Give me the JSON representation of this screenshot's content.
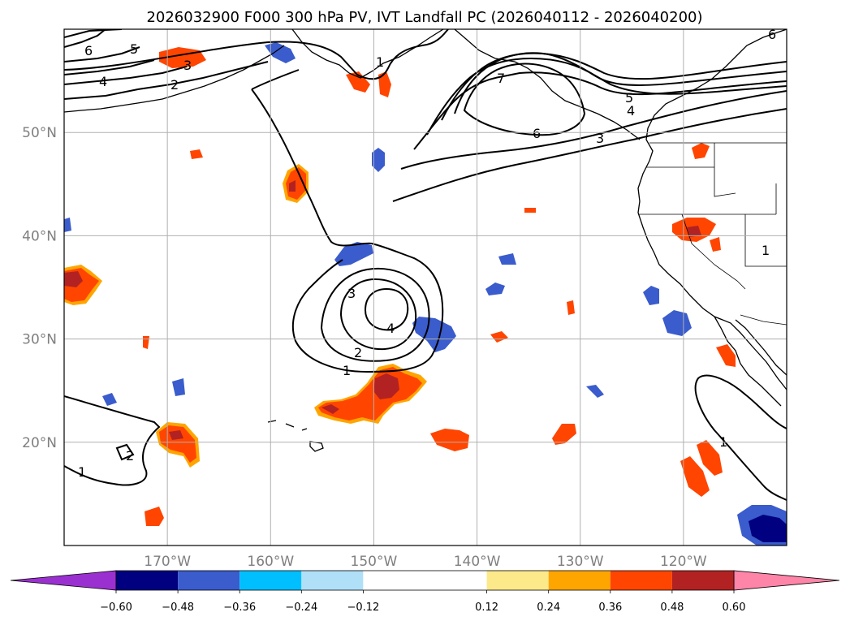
{
  "title": "2026032900 F000 300 hPa PV, IVT Landfall PC (2026040112 - 2026040200)",
  "map": {
    "projection": "PlateCarree",
    "lon_range": [
      -180,
      -110
    ],
    "lat_range": [
      10,
      60
    ],
    "lon_ticks": [
      {
        "value": -170,
        "label": "170°W"
      },
      {
        "value": -160,
        "label": "160°W"
      },
      {
        "value": -150,
        "label": "150°W"
      },
      {
        "value": -140,
        "label": "140°W"
      },
      {
        "value": -130,
        "label": "130°W"
      },
      {
        "value": -120,
        "label": "120°W"
      }
    ],
    "lat_ticks": [
      {
        "value": 50,
        "label": "50°N"
      },
      {
        "value": 40,
        "label": "40°N"
      },
      {
        "value": 30,
        "label": "30°N"
      },
      {
        "value": 20,
        "label": "20°N"
      }
    ],
    "contour_field": "300 hPa PV",
    "shaded_field": "IVT Landfall PC",
    "contour_levels_labeled": [
      "1",
      "2",
      "3",
      "4",
      "5",
      "6",
      "7"
    ],
    "shaded_features": [
      {
        "lat": 25.0,
        "lon": -149.0,
        "value": 0.5
      },
      {
        "lat": 22.5,
        "lon": -153.0,
        "value": 0.45
      },
      {
        "lat": 20.2,
        "lon": -170.0,
        "value": 0.45
      },
      {
        "lat": 35.5,
        "lon": -179.0,
        "value": 0.5
      },
      {
        "lat": 44.0,
        "lon": -158.5,
        "value": 0.45
      },
      {
        "lat": 41.0,
        "lon": -120.0,
        "value": 0.45
      },
      {
        "lat": 30.5,
        "lon": -145.5,
        "value": -0.4
      },
      {
        "lat": 38.5,
        "lon": -152.5,
        "value": -0.4
      },
      {
        "lat": 12.5,
        "lon": -112.5,
        "value": -0.55
      },
      {
        "lat": 31.5,
        "lon": -121.0,
        "value": -0.4
      }
    ]
  },
  "colorbar": {
    "colors": [
      "#9b30d0",
      "#000080",
      "#3a5ccc",
      "#00bfff",
      "#b0e0f8",
      "#ffffff",
      "#fce98a",
      "#ffa500",
      "#ff4500",
      "#b22222",
      "#ff85a8"
    ],
    "bounds": [
      -0.6,
      -0.48,
      -0.36,
      -0.24,
      -0.12,
      0.12,
      0.24,
      0.36,
      0.48,
      0.6
    ],
    "tick_labels": [
      "−0.60",
      "−0.48",
      "−0.36",
      "−0.24",
      "−0.12",
      "0.12",
      "0.24",
      "0.36",
      "0.48",
      "0.60"
    ]
  }
}
